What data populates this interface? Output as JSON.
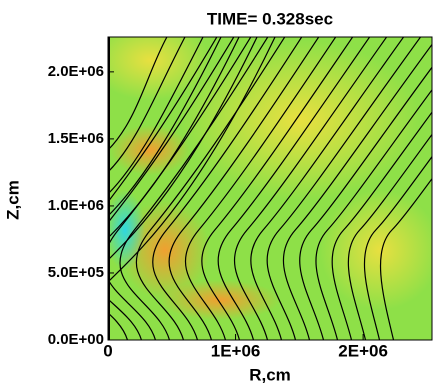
{
  "chart_data": {
    "type": "field",
    "title": "TIME=  0.328sec",
    "xlabel": "R,cm",
    "ylabel": "Z,cm",
    "xlim": [
      0,
      2540000
    ],
    "ylim": [
      0,
      2260000
    ],
    "xticks": [
      0,
      {
        "value": 1000000,
        "label": "1E+06"
      },
      {
        "value": 2000000,
        "label": "2E+06"
      }
    ],
    "yticks": [
      {
        "value": 0,
        "label": "0.0E+00"
      },
      {
        "value": 500000,
        "label": "5.0E+05"
      },
      {
        "value": 1000000,
        "label": "1.0E+06"
      },
      {
        "value": 1500000,
        "label": "1.5E+06"
      },
      {
        "value": 2000000,
        "label": "2.0E+06"
      }
    ]
  }
}
